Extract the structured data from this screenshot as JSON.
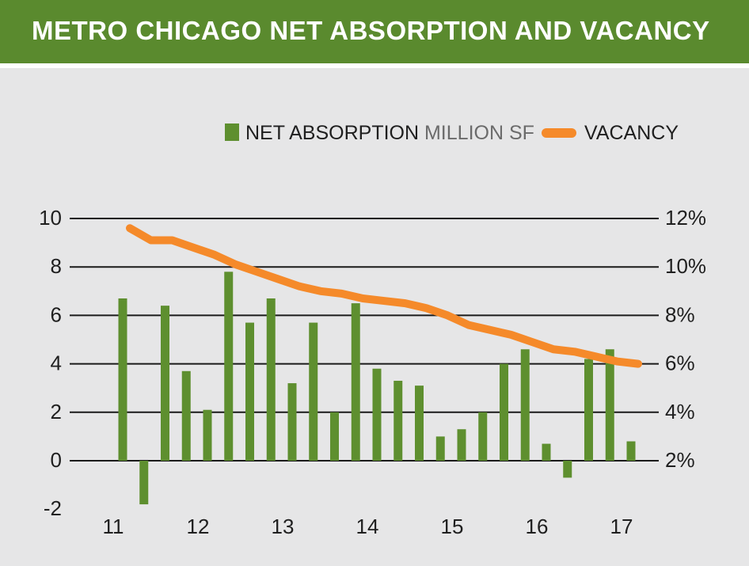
{
  "header": {
    "title": "METRO CHICAGO NET ABSORPTION AND VACANCY"
  },
  "colors": {
    "header_bg": "#5a8a2e",
    "bar": "#5e8f2f",
    "line": "#f58a2a",
    "grid": "#1a1a1a",
    "text": "#1f1f1f",
    "muted_text": "#6b6b6b"
  },
  "chart_data": {
    "type": "bar+line",
    "legend": {
      "placement": "top-right",
      "bar_label": "NET ABSORPTION",
      "bar_unit": "MILLION SF",
      "line_label": "VACANCY"
    },
    "left_axis": {
      "ticks": [
        "10",
        "8",
        "6",
        "4",
        "2",
        "0",
        "-2"
      ],
      "range": [
        -2,
        10
      ]
    },
    "right_axis": {
      "ticks": [
        "12%",
        "10%",
        "8%",
        "6%",
        "4%",
        "2%"
      ],
      "range": [
        2,
        12
      ]
    },
    "x_labels": [
      "11",
      "12",
      "13",
      "14",
      "15",
      "16",
      "17"
    ],
    "bar_series": {
      "name": "NET ABSORPTION",
      "x": [
        11.0,
        11.25,
        11.5,
        11.75,
        12.0,
        12.25,
        12.5,
        12.75,
        13.0,
        13.25,
        13.5,
        13.75,
        14.0,
        14.25,
        14.5,
        14.75,
        15.0,
        15.25,
        15.5,
        15.75,
        16.0,
        16.25,
        16.5,
        16.75,
        17.0
      ],
      "values": [
        6.7,
        -1.8,
        6.4,
        3.7,
        2.1,
        7.8,
        5.7,
        6.7,
        3.2,
        5.7,
        2.0,
        6.5,
        3.8,
        3.3,
        3.1,
        1.0,
        1.3,
        2.0,
        4.0,
        4.6,
        0.7,
        -0.7,
        4.2,
        4.6,
        0.8
      ]
    },
    "line_series": {
      "name": "VACANCY",
      "x": [
        11.0,
        11.25,
        11.5,
        11.75,
        12.0,
        12.25,
        12.5,
        12.75,
        13.0,
        13.25,
        13.5,
        13.75,
        14.0,
        14.25,
        14.5,
        14.75,
        15.0,
        15.25,
        15.5,
        15.75,
        16.0,
        16.25,
        16.5,
        16.75,
        17.0
      ],
      "values": [
        11.6,
        11.1,
        11.1,
        10.8,
        10.5,
        10.1,
        9.8,
        9.5,
        9.2,
        9.0,
        8.9,
        8.7,
        8.6,
        8.5,
        8.3,
        8.0,
        7.6,
        7.4,
        7.2,
        6.9,
        6.6,
        6.5,
        6.3,
        6.1,
        6.0
      ]
    },
    "grid": true
  }
}
